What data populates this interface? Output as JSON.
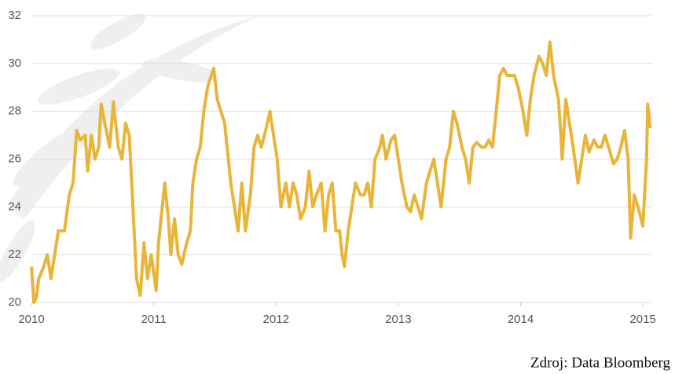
{
  "chart_data": {
    "type": "line",
    "source": "Zdroj: Data Bloomberg",
    "x": [
      2010,
      2010.02,
      2010.04,
      2010.06,
      2010.1,
      2010.13,
      2010.16,
      2010.19,
      2010.22,
      2010.27,
      2010.31,
      2010.34,
      2010.37,
      2010.4,
      2010.44,
      2010.46,
      2010.49,
      2010.52,
      2010.55,
      2010.57,
      2010.6,
      2010.64,
      2010.67,
      2010.71,
      2010.74,
      2010.77,
      2010.8,
      2010.84,
      2010.86,
      2010.89,
      2010.92,
      2010.95,
      2010.98,
      2011.02,
      2011.04,
      2011.07,
      2011.09,
      2011.12,
      2011.14,
      2011.17,
      2011.2,
      2011.23,
      2011.27,
      2011.3,
      2011.32,
      2011.35,
      2011.38,
      2011.41,
      2011.44,
      2011.47,
      2011.49,
      2011.52,
      2011.55,
      2011.58,
      2011.61,
      2011.63,
      2011.66,
      2011.69,
      2011.72,
      2011.75,
      2011.79,
      2011.82,
      2011.85,
      2011.88,
      2011.92,
      2011.95,
      2011.98,
      2012.01,
      2012.04,
      2012.08,
      2012.11,
      2012.14,
      2012.17,
      2012.2,
      2012.24,
      2012.27,
      2012.3,
      2012.33,
      2012.37,
      2012.4,
      2012.43,
      2012.46,
      2012.49,
      2012.52,
      2012.54,
      2012.56,
      2012.59,
      2012.62,
      2012.65,
      2012.69,
      2012.72,
      2012.75,
      2012.78,
      2012.81,
      2012.85,
      2012.87,
      2012.9,
      2012.94,
      2012.97,
      2013,
      2013.03,
      2013.07,
      2013.1,
      2013.13,
      2013.16,
      2013.19,
      2013.23,
      2013.26,
      2013.29,
      2013.32,
      2013.35,
      2013.39,
      2013.42,
      2013.45,
      2013.48,
      2013.52,
      2013.55,
      2013.58,
      2013.61,
      2013.64,
      2013.68,
      2013.71,
      2013.74,
      2013.77,
      2013.8,
      2013.83,
      2013.86,
      2013.89,
      2013.92,
      2013.95,
      2013.98,
      2014.02,
      2014.05,
      2014.08,
      2014.11,
      2014.15,
      2014.18,
      2014.21,
      2014.24,
      2014.27,
      2014.31,
      2014.33,
      2014.34,
      2014.37,
      2014.4,
      2014.43,
      2014.47,
      2014.5,
      2014.53,
      2014.56,
      2014.6,
      2014.63,
      2014.66,
      2014.69,
      2014.72,
      2014.76,
      2014.79,
      2014.82,
      2014.85,
      2014.88,
      2014.9,
      2014.93,
      2014.96,
      2015,
      2015.03,
      2015.04,
      2015.06
    ],
    "series": [
      {
        "color": "#e8b53a",
        "values": [
          21.5,
          20,
          20.2,
          21,
          21.5,
          22,
          21,
          22,
          23,
          23,
          24.5,
          25,
          27.2,
          26.8,
          27,
          25.5,
          27,
          26,
          26.5,
          28.3,
          27.5,
          26.5,
          28.4,
          26.5,
          26,
          27.5,
          27,
          23,
          21,
          20.3,
          22.5,
          21,
          22,
          20.5,
          22.5,
          24,
          25,
          23.5,
          22,
          23.5,
          22,
          21.6,
          22.5,
          23,
          25,
          26,
          26.5,
          28,
          29,
          29.5,
          29.8,
          28.5,
          28,
          27.5,
          26,
          25,
          24,
          23,
          25,
          23,
          24.5,
          26.5,
          27,
          26.5,
          27.3,
          28,
          27,
          26,
          24,
          25,
          24,
          25,
          24.5,
          23.5,
          24,
          25.5,
          24,
          24.5,
          25,
          23,
          24.5,
          25,
          23,
          23,
          22,
          21.5,
          23,
          24,
          25,
          24.5,
          24.5,
          25,
          24,
          26,
          26.5,
          27,
          26,
          26.8,
          27,
          26,
          25,
          24,
          23.8,
          24.5,
          24,
          23.5,
          25,
          25.5,
          26,
          25,
          24,
          26,
          26.5,
          28,
          27.5,
          26.5,
          26,
          25,
          26.5,
          26.7,
          26.5,
          26.5,
          26.8,
          26.5,
          28,
          29.5,
          29.8,
          29.5,
          29.5,
          29.5,
          29,
          28,
          27,
          28.5,
          29.5,
          30.3,
          30,
          29.5,
          30.9,
          29.5,
          28.5,
          27,
          26,
          28.5,
          27.5,
          26.5,
          25,
          26,
          27,
          26.3,
          26.8,
          26.5,
          26.5,
          27,
          26.5,
          25.8,
          26,
          26.5,
          27.2,
          26,
          22.7,
          24.5,
          24,
          23.2,
          26,
          28.3,
          27.3
        ]
      }
    ],
    "xlim": [
      2010,
      2015.07
    ],
    "xticks": [
      2010,
      2011,
      2012,
      2013,
      2014,
      2015
    ],
    "ylim": [
      20,
      32
    ],
    "yticks": [
      20,
      22,
      24,
      26,
      28,
      30,
      32
    ],
    "grid": true
  }
}
